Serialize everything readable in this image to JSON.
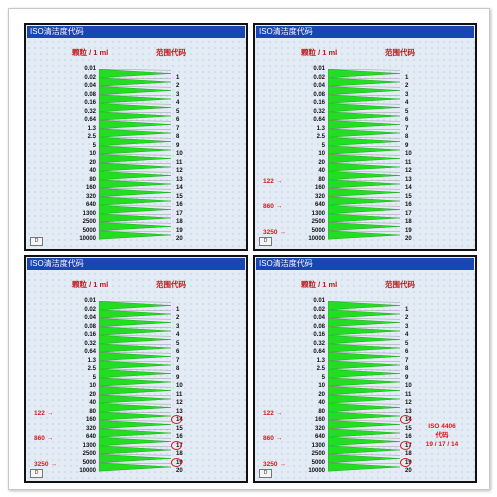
{
  "title": "ISO清洁度代码",
  "header_left": "颗粒 / 1 ml",
  "header_right": "范围代码",
  "values": [
    "0.01",
    "0.02",
    "0.04",
    "0.08",
    "0.16",
    "0.32",
    "0.64",
    "1.3",
    "2.5",
    "5",
    "10",
    "20",
    "40",
    "80",
    "160",
    "320",
    "640",
    "1300",
    "2500",
    "5000",
    "10000"
  ],
  "codes": [
    "1",
    "2",
    "3",
    "4",
    "5",
    "6",
    "7",
    "8",
    "9",
    "10",
    "11",
    "12",
    "13",
    "14",
    "15",
    "16",
    "17",
    "18",
    "19",
    "20"
  ],
  "arrows": [
    "122",
    "860",
    "3250"
  ],
  "iso_label": {
    "line1": "ISO 4406",
    "line2": "代码",
    "line3": "19 / 17 / 14"
  },
  "button_label": "D",
  "colors": {
    "title_bar": "#1846b3",
    "header_text": "#c01818",
    "highlight": "#d81a1a",
    "wedge": "#22dd22"
  }
}
